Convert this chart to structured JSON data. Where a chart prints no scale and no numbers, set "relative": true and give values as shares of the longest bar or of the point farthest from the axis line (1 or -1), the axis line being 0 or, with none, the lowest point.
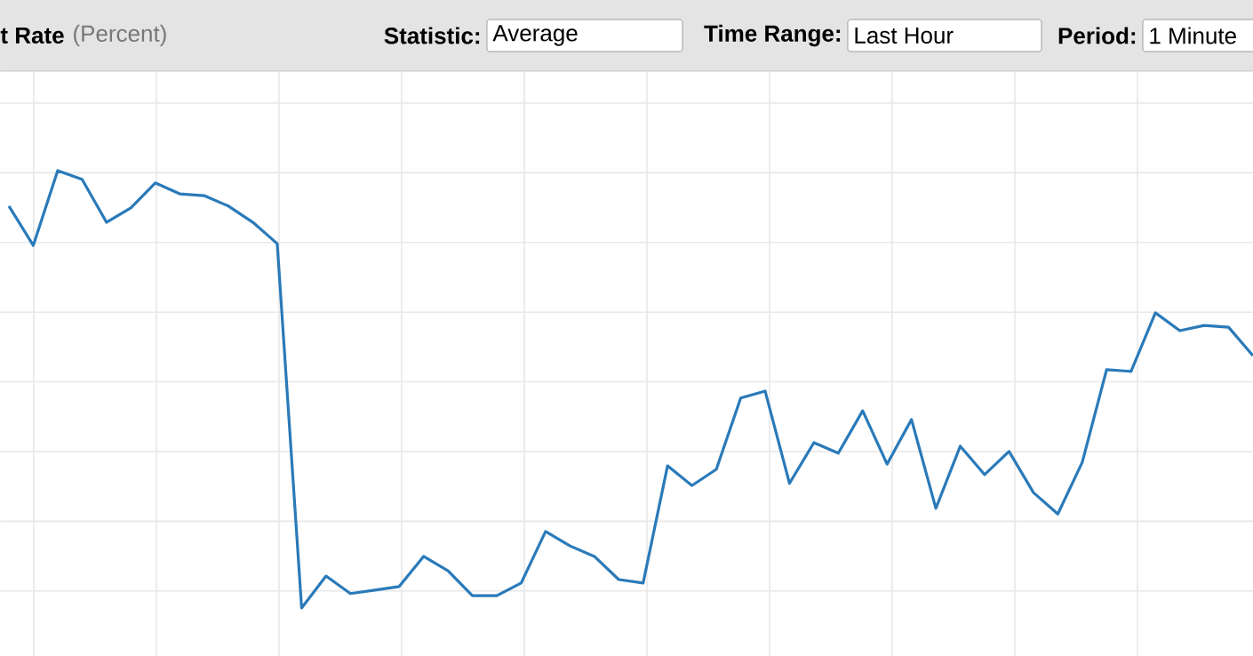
{
  "chart_data": {
    "type": "line",
    "title": "t Rate",
    "subtitle": "(Percent)",
    "relative": true,
    "grid": true,
    "color": "#2a7ab9",
    "annotations": [
      "Statistic:",
      "Average",
      "Time Range:",
      "Last Hour",
      "Period:",
      "1 Minute"
    ],
    "categories": [
      null,
      null,
      null,
      null,
      null,
      null,
      null,
      null,
      null,
      null,
      null,
      null,
      null,
      null,
      null,
      null,
      null,
      null,
      null,
      null,
      null,
      null,
      null,
      null,
      null,
      null,
      null,
      null,
      null,
      null,
      null,
      null,
      null,
      null,
      null,
      null,
      null,
      null,
      null,
      null,
      null,
      null,
      null,
      null,
      null,
      null,
      null,
      null,
      null,
      null,
      null,
      null
    ],
    "values": [
      0.919,
      0.829,
      1.0,
      0.98,
      0.882,
      0.915,
      0.972,
      0.947,
      0.943,
      0.919,
      0.882,
      0.833,
      0,
      0.073,
      0.033,
      0.041,
      0.049,
      0.118,
      0.085,
      0.028,
      0.028,
      0.057,
      0.175,
      0.142,
      0.118,
      0.065,
      0.057,
      0.325,
      0.28,
      0.317,
      0.48,
      0.496,
      0.285,
      0.378,
      0.354,
      0.451,
      0.329,
      0.431,
      0.228,
      0.37,
      0.305,
      0.358,
      0.264,
      0.215,
      0.333,
      0.545,
      0.541,
      0.675,
      0.634,
      0.646,
      0.642,
      0.577
    ]
  }
}
